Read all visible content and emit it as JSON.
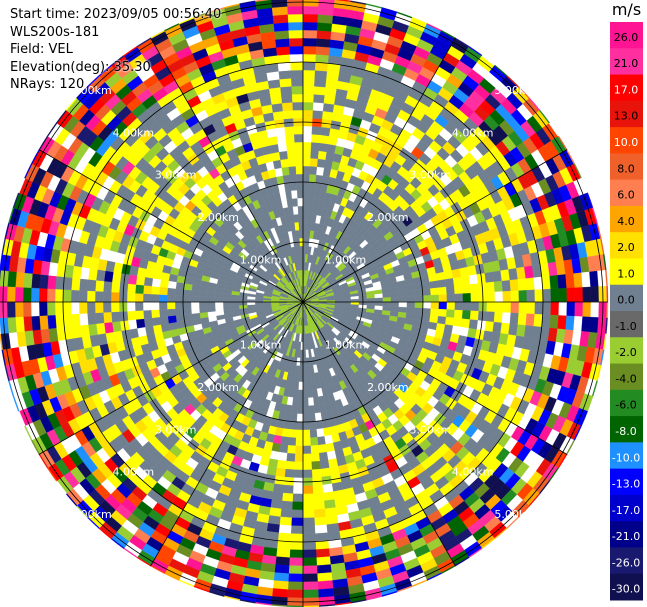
{
  "header": {
    "start_time": "Start time: 2023/09/05 00:56:40",
    "instrument": "WLS200s-181",
    "field": "Field: VEL",
    "elevation": "Elevation(deg): 35.30",
    "nrays": "NRays: 120"
  },
  "colorbar": {
    "unit": "m/s",
    "ticks": [
      "26.0",
      "21.0",
      "17.0",
      "13.0",
      "10.0",
      "8.0",
      "6.0",
      "4.0",
      "2.0",
      "1.0",
      "0.0",
      "-1.0",
      "-2.0",
      "-4.0",
      "-6.0",
      "-8.0",
      "-10.0",
      "-13.0",
      "-17.0",
      "-21.0",
      "-26.0",
      "-30.0"
    ],
    "colors": [
      "#ff1493",
      "#ff2fa0",
      "#ff0000",
      "#e8140c",
      "#ff4500",
      "#f0602a",
      "#ff7f50",
      "#ffa500",
      "#ffe000",
      "#ffff00",
      "#708090",
      "#696969",
      "#9acd32",
      "#6b8e23",
      "#228b22",
      "#006400",
      "#1e90ff",
      "#0000ff",
      "#0000cd",
      "#00008b",
      "#191970",
      "#101050"
    ]
  },
  "chart_data": {
    "type": "heatmap",
    "plot": "PPI polar velocity scan",
    "field": "VEL",
    "units": "m/s",
    "elevation_deg": 35.3,
    "nrays": 120,
    "range_rings": [
      {
        "label": "1.00km"
      },
      {
        "label": "2.00km"
      },
      {
        "label": "3.00km"
      },
      {
        "label": "4.00km"
      },
      {
        "label": "5.00km"
      }
    ],
    "description_bands": [
      "0-1.0 km mostly 0 to -2 m/s",
      "1.0-2.5 km mixed 0 to +2 m/s",
      "2.5-5.5 km noisy full range"
    ]
  }
}
